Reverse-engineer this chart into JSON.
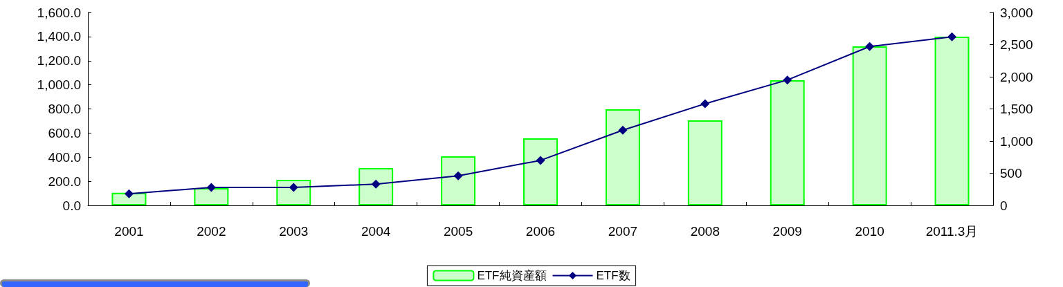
{
  "chart_data": {
    "type": "bar",
    "categories": [
      "2001",
      "2002",
      "2003",
      "2004",
      "2005",
      "2006",
      "2007",
      "2008",
      "2009",
      "2010",
      "2011.3月"
    ],
    "series": [
      {
        "name": "ETF純資産額",
        "color": "#ccffcc",
        "values": [
          105,
          143,
          212,
          310,
          407,
          556,
          797,
          705,
          1038,
          1319,
          1399
        ]
      },
      {
        "name": "ETF数",
        "type": "line",
        "axis": "y2",
        "color": "#000080",
        "values": [
          180,
          280,
          280,
          330,
          460,
          700,
          1170,
          1580,
          1950,
          2470,
          2620
        ]
      }
    ],
    "ylim": [
      0,
      1600
    ],
    "yticks": [
      {
        "value": 0,
        "label": "0.0"
      },
      {
        "value": 200,
        "label": "200.0"
      },
      {
        "value": 400,
        "label": "400.0"
      },
      {
        "value": 600,
        "label": "600.0"
      },
      {
        "value": 800,
        "label": "800.0"
      },
      {
        "value": 1000,
        "label": "1,000.0"
      },
      {
        "value": 1200,
        "label": "1,200.0"
      },
      {
        "value": 1400,
        "label": "1,400.0"
      },
      {
        "value": 1600,
        "label": "1,600.0"
      }
    ],
    "y2lim": [
      0,
      3000
    ],
    "y2ticks": [
      0,
      {
        "value": 500,
        "label": "500"
      },
      {
        "value": 1000,
        "label": "1,000"
      },
      {
        "value": 1500,
        "label": "1,500"
      },
      {
        "value": 2000,
        "label": "2,000"
      },
      {
        "value": 2500,
        "label": "2,500"
      },
      {
        "value": 3000,
        "label": "3,000"
      }
    ],
    "marker": "diamond",
    "legend": "bottom",
    "grid": false
  }
}
